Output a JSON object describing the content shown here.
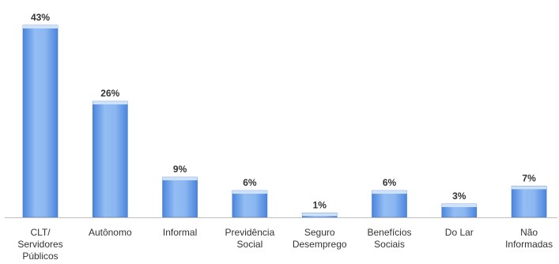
{
  "chart_data": {
    "type": "bar",
    "categories": [
      [
        "CLT/",
        "Servidores",
        "Públicos"
      ],
      [
        "Autônomo"
      ],
      [
        "Informal"
      ],
      [
        "Previdência",
        "Social"
      ],
      [
        "Seguro",
        "Desemprego"
      ],
      [
        "Benefícios",
        "Sociais"
      ],
      [
        "Do Lar"
      ],
      [
        "Não",
        "Informadas"
      ]
    ],
    "values": [
      43,
      26,
      9,
      6,
      1,
      6,
      3,
      7
    ],
    "data_labels": [
      "43%",
      "26%",
      "9%",
      "6%",
      "1%",
      "6%",
      "3%",
      "7%"
    ],
    "ylim": [
      0,
      45
    ],
    "grid": false,
    "legend": "none",
    "colors": {
      "bar_top": "#cfe2fb",
      "bar_light": "#93bdf3",
      "bar_dark": "#4a85dc",
      "bar_edge": "#3c73c8",
      "axis": "#bfbfbf",
      "text": "#333333"
    }
  }
}
